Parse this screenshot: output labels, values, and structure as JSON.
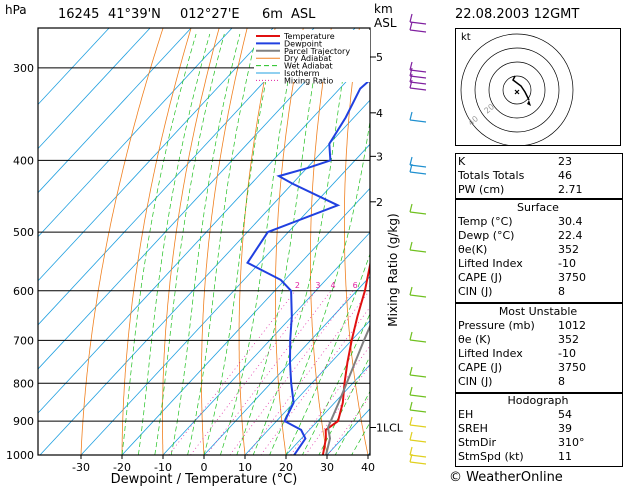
{
  "header": {
    "hpa_label": "hPa",
    "station": "16245",
    "lat": "41°39'N",
    "lon": "012°27'E",
    "elev": "6m",
    "elev_unit": "ASL",
    "km_label": "km",
    "asl_label": "ASL",
    "datetime": "22.08.2003 12GMT"
  },
  "chart_data": {
    "type": "line",
    "xlabel": "Dewpoint / Temperature (°C)",
    "ylabel": "Mixing Ratio (g/kg)",
    "x_ticks": [
      -30,
      -20,
      -10,
      0,
      10,
      20,
      30,
      40
    ],
    "pressure_levels": [
      300,
      400,
      500,
      600,
      700,
      800,
      900,
      1000
    ],
    "km_ticks": [
      {
        "label": "5",
        "p": 290
      },
      {
        "label": "4",
        "p": 345
      },
      {
        "label": "3",
        "p": 395
      },
      {
        "label": "2",
        "p": 455
      },
      {
        "label": "1LCL",
        "p": 918
      }
    ],
    "mixing_ratio_labels": [
      "2",
      "3",
      "4",
      "6",
      "8",
      "10",
      "16",
      "20",
      "28"
    ],
    "legend": [
      "Temperature",
      "Dewpoint",
      "Parcel Trajectory",
      "Dry Adiabat",
      "Wet Adiabat",
      "Isotherm",
      "Mixing Ratio"
    ],
    "colors": {
      "temperature": "#e01010",
      "dewpoint": "#2040e0",
      "parcel": "#808080",
      "dry_adiabat": "#f08020",
      "wet_adiabat": "#20c020",
      "isotherm": "#20a0e0",
      "mixing_ratio": "#e020a0"
    },
    "series": [
      {
        "name": "Temperature",
        "points": [
          [
            1012,
            30.4
          ],
          [
            1000,
            29
          ],
          [
            950,
            26
          ],
          [
            925,
            24
          ],
          [
            900,
            25
          ],
          [
            850,
            22
          ],
          [
            800,
            18
          ],
          [
            750,
            14
          ],
          [
            700,
            10
          ],
          [
            650,
            6
          ],
          [
            600,
            2
          ],
          [
            550,
            -3
          ],
          [
            500,
            -8
          ],
          [
            450,
            -14
          ],
          [
            400,
            -21
          ],
          [
            350,
            -28
          ],
          [
            300,
            -37
          ],
          [
            265,
            -44
          ]
        ]
      },
      {
        "name": "Dewpoint",
        "points": [
          [
            1012,
            22.4
          ],
          [
            1000,
            22
          ],
          [
            950,
            21
          ],
          [
            925,
            18
          ],
          [
            900,
            12
          ],
          [
            850,
            10
          ],
          [
            800,
            5
          ],
          [
            750,
            0
          ],
          [
            700,
            -5
          ],
          [
            650,
            -10
          ],
          [
            600,
            -16
          ],
          [
            580,
            -21
          ],
          [
            550,
            -33
          ],
          [
            500,
            -35
          ],
          [
            460,
            -24
          ],
          [
            430,
            -40
          ],
          [
            420,
            -45
          ],
          [
            410,
            -40
          ],
          [
            400,
            -36
          ],
          [
            380,
            -40
          ],
          [
            350,
            -42
          ],
          [
            320,
            -45
          ],
          [
            300,
            -44
          ],
          [
            280,
            -48
          ],
          [
            265,
            -52
          ]
        ]
      },
      {
        "name": "Parcel Trajectory",
        "points": [
          [
            1012,
            30.4
          ],
          [
            950,
            27
          ],
          [
            918,
            24
          ],
          [
            850,
            21
          ],
          [
            800,
            18.5
          ],
          [
            700,
            13
          ],
          [
            600,
            7
          ],
          [
            500,
            0
          ],
          [
            400,
            -10
          ],
          [
            300,
            -24
          ],
          [
            265,
            -30
          ]
        ]
      }
    ],
    "xlim": [
      -35,
      40
    ],
    "ylim": [
      1000,
      265
    ]
  },
  "hodograph": {
    "label": "kt",
    "ring_labels": [
      "40",
      "20"
    ]
  },
  "indices": {
    "rows": [
      {
        "name": "K",
        "value": "23"
      },
      {
        "name": "Totals Totals",
        "value": "46"
      },
      {
        "name": "PW (cm)",
        "value": "2.71"
      }
    ],
    "surface": {
      "title": "Surface",
      "rows": [
        {
          "name": "Temp (°C)",
          "value": "30.4"
        },
        {
          "name": "Dewp (°C)",
          "value": "22.4"
        },
        {
          "name": "θe(K)",
          "value": "352"
        },
        {
          "name": "Lifted Index",
          "value": "-10"
        },
        {
          "name": "CAPE (J)",
          "value": "3750"
        },
        {
          "name": "CIN (J)",
          "value": "8"
        }
      ]
    },
    "most_unstable": {
      "title": "Most Unstable",
      "rows": [
        {
          "name": "Pressure (mb)",
          "value": "1012"
        },
        {
          "name": "θe (K)",
          "value": "352"
        },
        {
          "name": "Lifted Index",
          "value": "-10"
        },
        {
          "name": "CAPE (J)",
          "value": "3750"
        },
        {
          "name": "CIN (J)",
          "value": "8"
        }
      ]
    },
    "hodograph_box": {
      "title": "Hodograph",
      "rows": [
        {
          "name": "EH",
          "value": "54"
        },
        {
          "name": "SREH",
          "value": "39"
        },
        {
          "name": "StmDir",
          "value": "310°"
        },
        {
          "name": "StmSpd (kt)",
          "value": "11"
        }
      ]
    }
  },
  "footer": {
    "copyright": "© WeatherOnline"
  }
}
